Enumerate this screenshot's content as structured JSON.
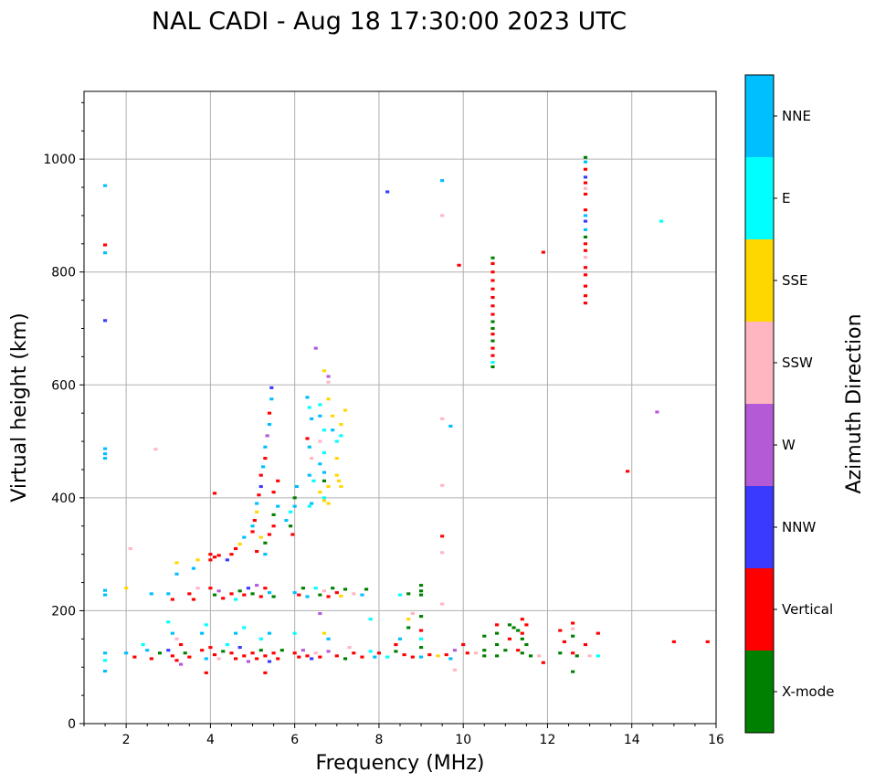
{
  "chart_data": {
    "type": "scatter",
    "title": "NAL CADI - Aug 18 17:30:00 2023 UTC",
    "xlabel": "Frequency (MHz)",
    "ylabel": "Virtual height (km)",
    "xlim": [
      1,
      16
    ],
    "ylim": [
      0,
      1120
    ],
    "xticks": [
      2,
      4,
      6,
      8,
      10,
      12,
      14,
      16
    ],
    "yticks": [
      0,
      200,
      400,
      600,
      800,
      1000
    ],
    "grid": true,
    "colorbar": {
      "label": "Azimuth Direction",
      "categories": [
        {
          "name": "X-mode",
          "color": "#008000"
        },
        {
          "name": "Vertical",
          "color": "#ff0000"
        },
        {
          "name": "NNW",
          "color": "#3a3aff"
        },
        {
          "name": "W",
          "color": "#b45ad6"
        },
        {
          "name": "SSW",
          "color": "#ffb6c1"
        },
        {
          "name": "SSE",
          "color": "#ffd700"
        },
        {
          "name": "E",
          "color": "#00ffff"
        },
        {
          "name": "NNE",
          "color": "#00bfff"
        }
      ]
    },
    "points": [
      [
        1.5,
        953,
        "NNE"
      ],
      [
        1.5,
        848,
        "Vertical"
      ],
      [
        1.5,
        834,
        "NNE"
      ],
      [
        1.5,
        714,
        "NNW"
      ],
      [
        1.5,
        487,
        "NNE"
      ],
      [
        1.5,
        478,
        "NNE"
      ],
      [
        1.5,
        470,
        "NNE"
      ],
      [
        1.5,
        236,
        "NNE"
      ],
      [
        1.5,
        228,
        "NNE"
      ],
      [
        1.5,
        125,
        "NNE"
      ],
      [
        1.5,
        112,
        "E"
      ],
      [
        1.5,
        93,
        "NNE"
      ],
      [
        2.1,
        310,
        "SSW"
      ],
      [
        2.0,
        240,
        "SSE"
      ],
      [
        2.0,
        125,
        "NNE"
      ],
      [
        2.2,
        118,
        "Vertical"
      ],
      [
        2.4,
        140,
        "E"
      ],
      [
        2.5,
        130,
        "NNE"
      ],
      [
        2.6,
        115,
        "Vertical"
      ],
      [
        2.6,
        230,
        "NNE"
      ],
      [
        2.8,
        125,
        "X-mode"
      ],
      [
        2.7,
        486,
        "SSW"
      ],
      [
        3.0,
        230,
        "NNE"
      ],
      [
        3.1,
        220,
        "Vertical"
      ],
      [
        3.2,
        265,
        "NNE"
      ],
      [
        3.2,
        285,
        "SSE"
      ],
      [
        3.0,
        180,
        "E"
      ],
      [
        3.1,
        160,
        "NNE"
      ],
      [
        3.2,
        150,
        "SSW"
      ],
      [
        3.3,
        140,
        "Vertical"
      ],
      [
        3.0,
        130,
        "NNW"
      ],
      [
        3.1,
        120,
        "Vertical"
      ],
      [
        3.2,
        112,
        "Vertical"
      ],
      [
        3.3,
        105,
        "W"
      ],
      [
        3.4,
        125,
        "X-mode"
      ],
      [
        3.5,
        118,
        "Vertical"
      ],
      [
        3.5,
        230,
        "Vertical"
      ],
      [
        3.6,
        220,
        "Vertical"
      ],
      [
        3.7,
        240,
        "SSW"
      ],
      [
        3.6,
        275,
        "NNE"
      ],
      [
        3.7,
        290,
        "SSE"
      ],
      [
        3.8,
        130,
        "Vertical"
      ],
      [
        3.9,
        115,
        "NNE"
      ],
      [
        3.9,
        90,
        "Vertical"
      ],
      [
        3.8,
        160,
        "NNE"
      ],
      [
        3.9,
        175,
        "E"
      ],
      [
        4.0,
        300,
        "Vertical"
      ],
      [
        4.0,
        290,
        "Vertical"
      ],
      [
        4.1,
        295,
        "Vertical"
      ],
      [
        4.2,
        298,
        "Vertical"
      ],
      [
        4.1,
        408,
        "Vertical"
      ],
      [
        4.0,
        240,
        "Vertical"
      ],
      [
        4.1,
        228,
        "X-mode"
      ],
      [
        4.2,
        235,
        "W"
      ],
      [
        4.3,
        222,
        "Vertical"
      ],
      [
        4.0,
        135,
        "Vertical"
      ],
      [
        4.1,
        122,
        "Vertical"
      ],
      [
        4.2,
        115,
        "SSW"
      ],
      [
        4.3,
        128,
        "X-mode"
      ],
      [
        4.4,
        140,
        "E"
      ],
      [
        4.4,
        290,
        "NNW"
      ],
      [
        4.5,
        300,
        "Vertical"
      ],
      [
        4.6,
        310,
        "Vertical"
      ],
      [
        4.7,
        318,
        "SSE"
      ],
      [
        4.8,
        330,
        "NNE"
      ],
      [
        4.5,
        230,
        "Vertical"
      ],
      [
        4.6,
        220,
        "E"
      ],
      [
        4.7,
        235,
        "X-mode"
      ],
      [
        4.8,
        228,
        "Vertical"
      ],
      [
        4.9,
        240,
        "NNW"
      ],
      [
        4.5,
        125,
        "Vertical"
      ],
      [
        4.6,
        115,
        "Vertical"
      ],
      [
        4.7,
        135,
        "NNW"
      ],
      [
        4.8,
        120,
        "Vertical"
      ],
      [
        4.9,
        110,
        "W"
      ],
      [
        4.6,
        160,
        "NNE"
      ],
      [
        4.8,
        170,
        "E"
      ],
      [
        5.0,
        340,
        "Vertical"
      ],
      [
        5.0,
        350,
        "NNE"
      ],
      [
        5.05,
        360,
        "Vertical"
      ],
      [
        5.1,
        375,
        "SSE"
      ],
      [
        5.1,
        390,
        "NNE"
      ],
      [
        5.15,
        405,
        "Vertical"
      ],
      [
        5.2,
        420,
        "NNW"
      ],
      [
        5.2,
        440,
        "Vertical"
      ],
      [
        5.25,
        455,
        "NNE"
      ],
      [
        5.3,
        470,
        "Vertical"
      ],
      [
        5.3,
        490,
        "NNE"
      ],
      [
        5.35,
        510,
        "W"
      ],
      [
        5.4,
        530,
        "NNE"
      ],
      [
        5.4,
        550,
        "Vertical"
      ],
      [
        5.45,
        575,
        "NNE"
      ],
      [
        5.45,
        595,
        "NNW"
      ],
      [
        5.2,
        330,
        "SSE"
      ],
      [
        5.3,
        320,
        "X-mode"
      ],
      [
        5.4,
        335,
        "Vertical"
      ],
      [
        5.3,
        300,
        "NNE"
      ],
      [
        5.1,
        305,
        "Vertical"
      ],
      [
        5.5,
        350,
        "Vertical"
      ],
      [
        5.5,
        370,
        "X-mode"
      ],
      [
        5.6,
        385,
        "NNE"
      ],
      [
        5.5,
        410,
        "Vertical"
      ],
      [
        5.6,
        430,
        "Vertical"
      ],
      [
        5.0,
        230,
        "X-mode"
      ],
      [
        5.1,
        245,
        "W"
      ],
      [
        5.2,
        225,
        "Vertical"
      ],
      [
        5.3,
        240,
        "Vertical"
      ],
      [
        5.4,
        232,
        "NNE"
      ],
      [
        5.5,
        225,
        "X-mode"
      ],
      [
        5.0,
        125,
        "Vertical"
      ],
      [
        5.1,
        115,
        "Vertical"
      ],
      [
        5.2,
        130,
        "X-mode"
      ],
      [
        5.3,
        120,
        "Vertical"
      ],
      [
        5.4,
        110,
        "NNW"
      ],
      [
        5.5,
        125,
        "Vertical"
      ],
      [
        5.6,
        115,
        "Vertical"
      ],
      [
        5.7,
        130,
        "X-mode"
      ],
      [
        5.2,
        150,
        "E"
      ],
      [
        5.4,
        160,
        "NNE"
      ],
      [
        5.3,
        90,
        "Vertical"
      ],
      [
        5.8,
        360,
        "NNE"
      ],
      [
        5.9,
        375,
        "E"
      ],
      [
        6.0,
        385,
        "NNE"
      ],
      [
        6.0,
        400,
        "X-mode"
      ],
      [
        6.05,
        420,
        "NNE"
      ],
      [
        5.95,
        335,
        "Vertical"
      ],
      [
        5.9,
        350,
        "X-mode"
      ],
      [
        6.0,
        232,
        "NNE"
      ],
      [
        6.1,
        228,
        "Vertical"
      ],
      [
        6.2,
        240,
        "X-mode"
      ],
      [
        6.3,
        225,
        "NNE"
      ],
      [
        6.0,
        125,
        "Vertical"
      ],
      [
        6.1,
        118,
        "Vertical"
      ],
      [
        6.2,
        130,
        "W"
      ],
      [
        6.3,
        120,
        "Vertical"
      ],
      [
        6.4,
        115,
        "NNW"
      ],
      [
        6.0,
        160,
        "E"
      ],
      [
        6.3,
        578,
        "NNE"
      ],
      [
        6.35,
        560,
        "E"
      ],
      [
        6.4,
        540,
        "NNE"
      ],
      [
        6.3,
        505,
        "Vertical"
      ],
      [
        6.35,
        490,
        "NNE"
      ],
      [
        6.4,
        470,
        "SSW"
      ],
      [
        6.35,
        440,
        "NNE"
      ],
      [
        6.45,
        430,
        "E"
      ],
      [
        6.4,
        390,
        "NNE"
      ],
      [
        6.35,
        385,
        "E"
      ],
      [
        6.5,
        665,
        "W"
      ],
      [
        6.6,
        565,
        "E"
      ],
      [
        6.6,
        545,
        "NNE"
      ],
      [
        6.7,
        520,
        "E"
      ],
      [
        6.6,
        500,
        "SSW"
      ],
      [
        6.6,
        460,
        "NNE"
      ],
      [
        6.7,
        445,
        "NNE"
      ],
      [
        6.7,
        430,
        "X-mode"
      ],
      [
        6.6,
        410,
        "SSE"
      ],
      [
        6.7,
        400,
        "E"
      ],
      [
        6.7,
        395,
        "SSE"
      ],
      [
        6.8,
        390,
        "SSE"
      ],
      [
        6.8,
        420,
        "SSE"
      ],
      [
        6.7,
        480,
        "E"
      ],
      [
        6.7,
        625,
        "SSE"
      ],
      [
        6.8,
        615,
        "W"
      ],
      [
        6.8,
        605,
        "SSW"
      ],
      [
        6.8,
        575,
        "SSE"
      ],
      [
        6.9,
        545,
        "SSE"
      ],
      [
        6.9,
        520,
        "NNE"
      ],
      [
        7.0,
        500,
        "E"
      ],
      [
        7.0,
        440,
        "SSE"
      ],
      [
        7.05,
        430,
        "SSE"
      ],
      [
        7.1,
        420,
        "SSE"
      ],
      [
        7.1,
        510,
        "E"
      ],
      [
        7.1,
        530,
        "SSE"
      ],
      [
        7.2,
        555,
        "SSE"
      ],
      [
        7.0,
        470,
        "SSE"
      ],
      [
        6.5,
        240,
        "E"
      ],
      [
        6.6,
        228,
        "X-mode"
      ],
      [
        6.7,
        235,
        "SSW"
      ],
      [
        6.8,
        225,
        "Vertical"
      ],
      [
        6.9,
        240,
        "X-mode"
      ],
      [
        7.0,
        232,
        "Vertical"
      ],
      [
        7.1,
        226,
        "SSE"
      ],
      [
        7.2,
        238,
        "X-mode"
      ],
      [
        7.4,
        230,
        "SSW"
      ],
      [
        7.6,
        228,
        "NNE"
      ],
      [
        7.7,
        238,
        "X-mode"
      ],
      [
        6.6,
        195,
        "W"
      ],
      [
        6.7,
        160,
        "SSE"
      ],
      [
        6.8,
        150,
        "NNE"
      ],
      [
        6.5,
        125,
        "SSW"
      ],
      [
        6.6,
        118,
        "Vertical"
      ],
      [
        6.8,
        128,
        "W"
      ],
      [
        7.0,
        120,
        "Vertical"
      ],
      [
        7.2,
        115,
        "X-mode"
      ],
      [
        7.4,
        125,
        "Vertical"
      ],
      [
        7.6,
        118,
        "Vertical"
      ],
      [
        7.8,
        128,
        "E"
      ],
      [
        7.9,
        118,
        "NNE"
      ],
      [
        7.3,
        135,
        "SSW"
      ],
      [
        7.8,
        185,
        "E"
      ],
      [
        8.0,
        125,
        "Vertical"
      ],
      [
        8.2,
        118,
        "E"
      ],
      [
        8.4,
        128,
        "X-mode"
      ],
      [
        8.6,
        122,
        "Vertical"
      ],
      [
        8.8,
        118,
        "Vertical"
      ],
      [
        8.4,
        140,
        "Vertical"
      ],
      [
        8.5,
        150,
        "NNE"
      ],
      [
        8.7,
        185,
        "SSE"
      ],
      [
        8.8,
        195,
        "SSW"
      ],
      [
        8.7,
        170,
        "X-mode"
      ],
      [
        8.5,
        228,
        "E"
      ],
      [
        8.7,
        230,
        "X-mode"
      ],
      [
        9.0,
        245,
        "X-mode"
      ],
      [
        9.0,
        235,
        "X-mode"
      ],
      [
        9.0,
        228,
        "X-mode"
      ],
      [
        9.0,
        190,
        "X-mode"
      ],
      [
        9.0,
        165,
        "Vertical"
      ],
      [
        9.0,
        150,
        "E"
      ],
      [
        9.0,
        135,
        "X-mode"
      ],
      [
        9.0,
        118,
        "NNE"
      ],
      [
        9.2,
        122,
        "Vertical"
      ],
      [
        9.4,
        120,
        "SSE"
      ],
      [
        9.6,
        122,
        "Vertical"
      ],
      [
        9.7,
        115,
        "NNE"
      ],
      [
        9.8,
        95,
        "SSW"
      ],
      [
        8.2,
        942,
        "NNW"
      ],
      [
        9.5,
        962,
        "NNE"
      ],
      [
        9.5,
        900,
        "SSW"
      ],
      [
        9.5,
        540,
        "SSW"
      ],
      [
        9.7,
        527,
        "NNE"
      ],
      [
        9.5,
        422,
        "SSW"
      ],
      [
        9.5,
        332,
        "Vertical"
      ],
      [
        9.5,
        303,
        "SSW"
      ],
      [
        9.5,
        212,
        "SSW"
      ],
      [
        9.9,
        812,
        "Vertical"
      ],
      [
        9.8,
        130,
        "W"
      ],
      [
        10.0,
        140,
        "Vertical"
      ],
      [
        10.1,
        125,
        "Vertical"
      ],
      [
        10.3,
        125,
        "SSW"
      ],
      [
        10.5,
        155,
        "X-mode"
      ],
      [
        10.5,
        130,
        "X-mode"
      ],
      [
        10.5,
        120,
        "X-mode"
      ],
      [
        10.8,
        175,
        "Vertical"
      ],
      [
        10.8,
        160,
        "X-mode"
      ],
      [
        10.8,
        140,
        "X-mode"
      ],
      [
        10.8,
        120,
        "X-mode"
      ],
      [
        10.7,
        825,
        "X-mode"
      ],
      [
        10.7,
        815,
        "Vertical"
      ],
      [
        10.7,
        800,
        "Vertical"
      ],
      [
        10.7,
        785,
        "Vertical"
      ],
      [
        10.7,
        770,
        "Vertical"
      ],
      [
        10.7,
        755,
        "Vertical"
      ],
      [
        10.7,
        740,
        "Vertical"
      ],
      [
        10.7,
        725,
        "Vertical"
      ],
      [
        10.7,
        712,
        "X-mode"
      ],
      [
        10.7,
        700,
        "X-mode"
      ],
      [
        10.7,
        690,
        "Vertical"
      ],
      [
        10.7,
        678,
        "X-mode"
      ],
      [
        10.7,
        665,
        "Vertical"
      ],
      [
        10.7,
        652,
        "Vertical"
      ],
      [
        10.7,
        640,
        "E"
      ],
      [
        10.7,
        632,
        "X-mode"
      ],
      [
        11.1,
        175,
        "X-mode"
      ],
      [
        11.2,
        170,
        "X-mode"
      ],
      [
        11.3,
        165,
        "X-mode"
      ],
      [
        11.4,
        160,
        "Vertical"
      ],
      [
        11.4,
        150,
        "X-mode"
      ],
      [
        11.5,
        140,
        "X-mode"
      ],
      [
        11.3,
        130,
        "Vertical"
      ],
      [
        11.4,
        125,
        "X-mode"
      ],
      [
        11.6,
        120,
        "X-mode"
      ],
      [
        11.1,
        150,
        "Vertical"
      ],
      [
        11.0,
        130,
        "X-mode"
      ],
      [
        11.4,
        185,
        "Vertical"
      ],
      [
        11.5,
        175,
        "Vertical"
      ],
      [
        11.8,
        120,
        "SSW"
      ],
      [
        11.9,
        108,
        "Vertical"
      ],
      [
        11.9,
        835,
        "Vertical"
      ],
      [
        12.3,
        165,
        "Vertical"
      ],
      [
        12.4,
        145,
        "Vertical"
      ],
      [
        12.6,
        125,
        "Vertical"
      ],
      [
        12.3,
        125,
        "X-mode"
      ],
      [
        12.6,
        178,
        "Vertical"
      ],
      [
        12.6,
        168,
        "SSW"
      ],
      [
        12.6,
        155,
        "X-mode"
      ],
      [
        12.7,
        120,
        "X-mode"
      ],
      [
        12.6,
        92,
        "X-mode"
      ],
      [
        12.9,
        140,
        "Vertical"
      ],
      [
        13.0,
        120,
        "SSW"
      ],
      [
        13.2,
        120,
        "E"
      ],
      [
        13.2,
        160,
        "Vertical"
      ],
      [
        12.9,
        1003,
        "X-mode"
      ],
      [
        12.9,
        995,
        "NNE"
      ],
      [
        12.9,
        982,
        "Vertical"
      ],
      [
        12.9,
        968,
        "NNW"
      ],
      [
        12.9,
        958,
        "Vertical"
      ],
      [
        12.9,
        948,
        "SSW"
      ],
      [
        12.9,
        938,
        "Vertical"
      ],
      [
        12.9,
        910,
        "Vertical"
      ],
      [
        12.9,
        900,
        "NNE"
      ],
      [
        12.9,
        890,
        "NNW"
      ],
      [
        12.9,
        875,
        "NNE"
      ],
      [
        12.9,
        862,
        "X-mode"
      ],
      [
        12.9,
        850,
        "Vertical"
      ],
      [
        12.9,
        838,
        "Vertical"
      ],
      [
        12.9,
        826,
        "SSW"
      ],
      [
        12.9,
        808,
        "Vertical"
      ],
      [
        12.9,
        795,
        "Vertical"
      ],
      [
        12.9,
        775,
        "Vertical"
      ],
      [
        12.9,
        758,
        "Vertical"
      ],
      [
        12.9,
        745,
        "Vertical"
      ],
      [
        13.9,
        447,
        "Vertical"
      ],
      [
        14.6,
        552,
        "W"
      ],
      [
        14.7,
        890,
        "E"
      ],
      [
        15.0,
        145,
        "Vertical"
      ],
      [
        15.8,
        145,
        "Vertical"
      ]
    ]
  }
}
